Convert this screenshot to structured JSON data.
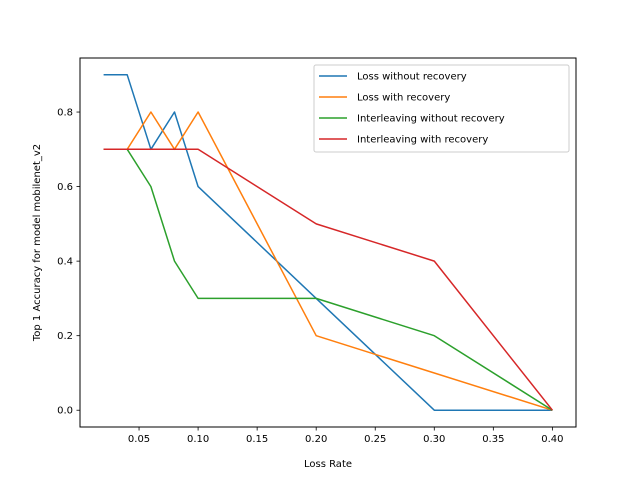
{
  "chart_data": {
    "type": "line",
    "title": "",
    "xlabel": "Loss Rate",
    "ylabel": "Top 1 Accuracy for model mobilenet_v2",
    "xlim": [
      0.0,
      0.42
    ],
    "ylim": [
      -0.045,
      0.945
    ],
    "xticks": [
      0.05,
      0.1,
      0.15,
      0.2,
      0.25,
      0.3,
      0.35,
      0.4
    ],
    "xtick_labels": [
      "0.05",
      "0.10",
      "0.15",
      "0.20",
      "0.25",
      "0.30",
      "0.35",
      "0.40"
    ],
    "yticks": [
      0.0,
      0.2,
      0.4,
      0.6,
      0.8
    ],
    "ytick_labels": [
      "0.0",
      "0.2",
      "0.4",
      "0.6",
      "0.8"
    ],
    "grid": false,
    "legend_position": "top-right",
    "series": [
      {
        "name": "Loss without recovery",
        "color": "#1f77b4",
        "x": [
          0.02,
          0.04,
          0.06,
          0.08,
          0.1,
          0.2,
          0.3,
          0.4
        ],
        "y": [
          0.9,
          0.9,
          0.7,
          0.8,
          0.6,
          0.3,
          0.0,
          0.0
        ]
      },
      {
        "name": "Loss with recovery",
        "color": "#ff7f0e",
        "x": [
          0.02,
          0.04,
          0.06,
          0.08,
          0.1,
          0.2,
          0.3,
          0.4
        ],
        "y": [
          0.7,
          0.7,
          0.8,
          0.7,
          0.8,
          0.2,
          0.1,
          0.0
        ]
      },
      {
        "name": "Interleaving without recovery",
        "color": "#2ca02c",
        "x": [
          0.02,
          0.04,
          0.06,
          0.08,
          0.1,
          0.2,
          0.3,
          0.4
        ],
        "y": [
          0.7,
          0.7,
          0.6,
          0.4,
          0.3,
          0.3,
          0.2,
          0.0
        ]
      },
      {
        "name": "Interleaving with recovery",
        "color": "#d62728",
        "x": [
          0.02,
          0.04,
          0.06,
          0.08,
          0.1,
          0.2,
          0.3,
          0.4
        ],
        "y": [
          0.7,
          0.7,
          0.7,
          0.7,
          0.7,
          0.5,
          0.4,
          0.0
        ]
      }
    ]
  }
}
